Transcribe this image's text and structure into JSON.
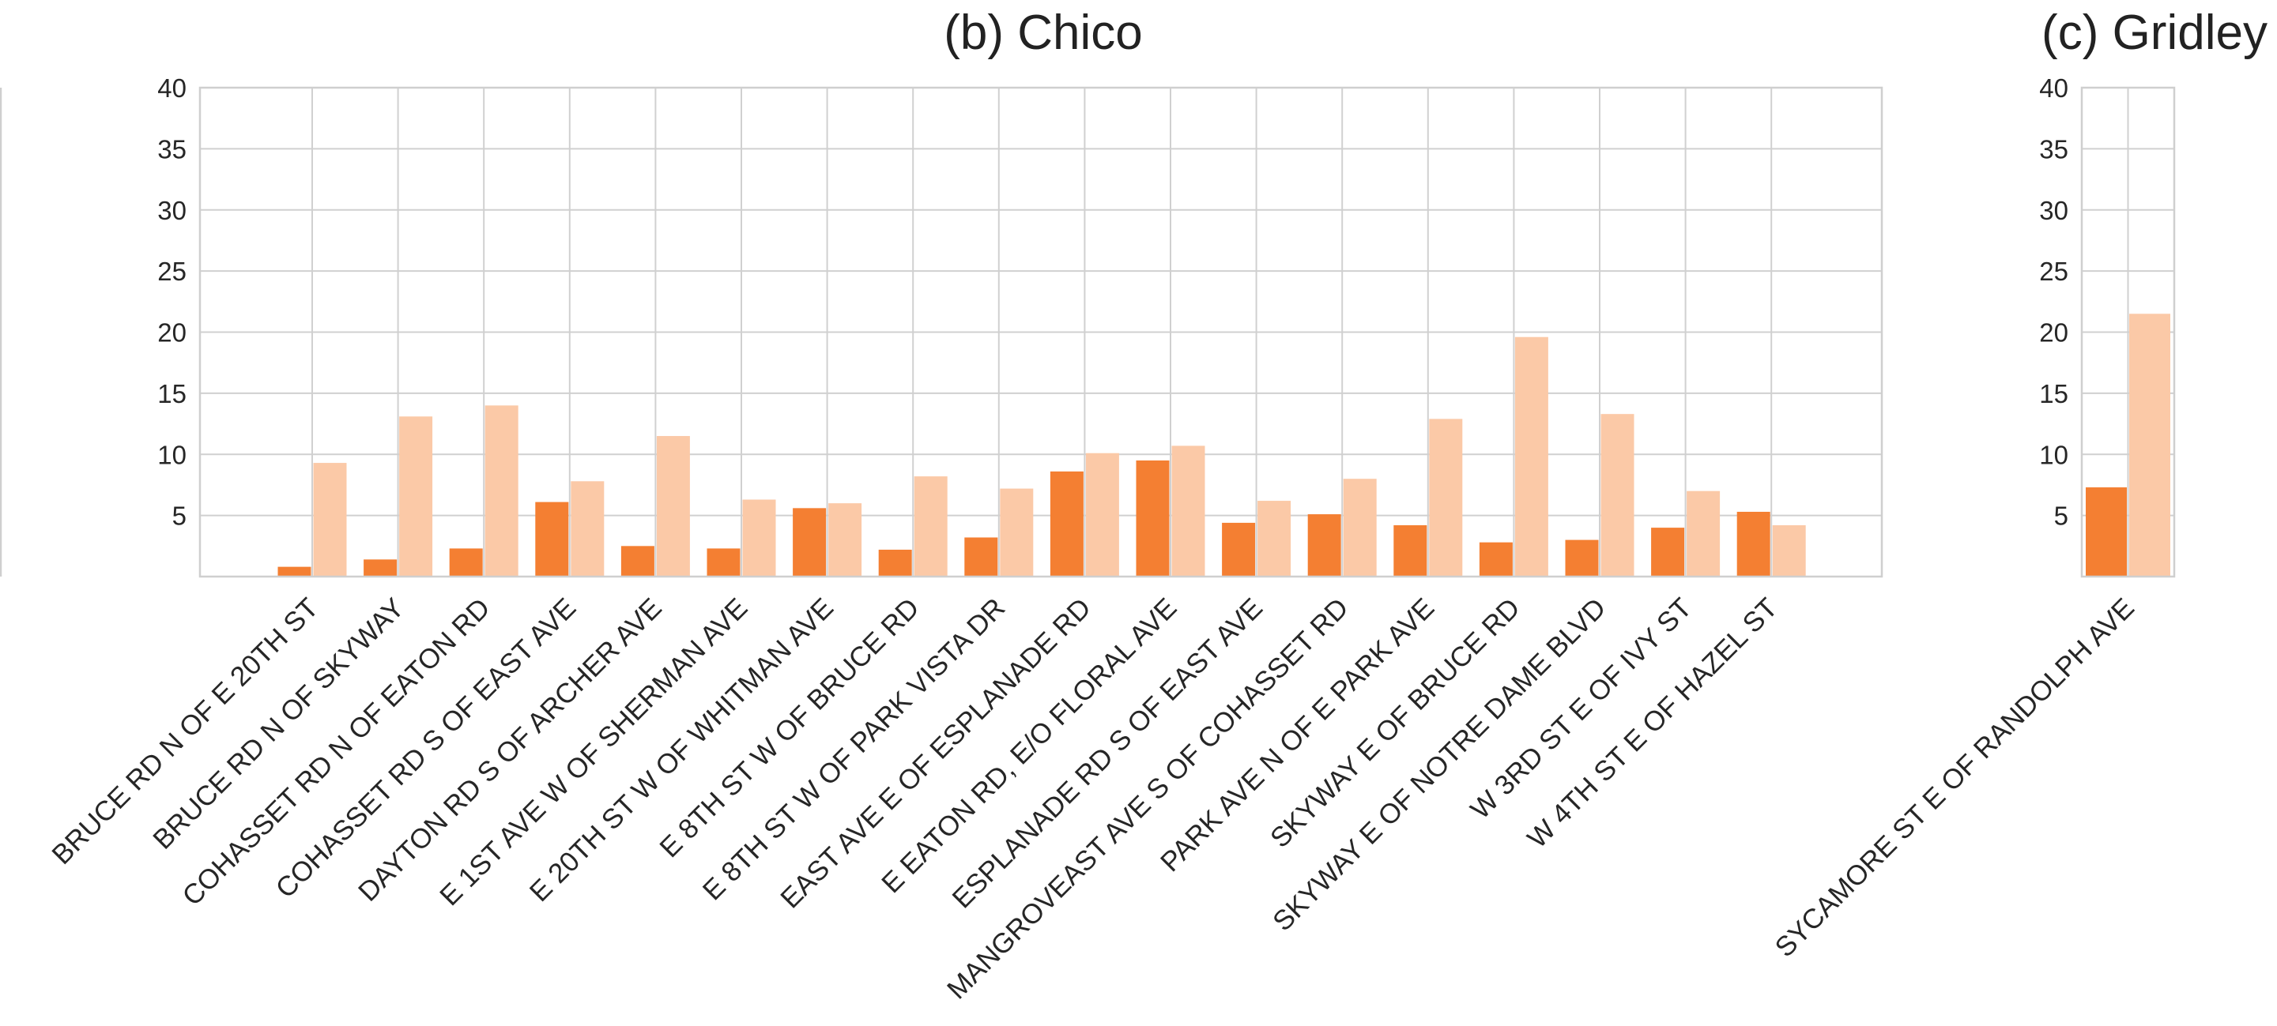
{
  "colors": {
    "series_dark": "#F47F32",
    "series_light": "#FBC9A7"
  },
  "chart_data": [
    {
      "type": "bar",
      "title": "(b) Chico",
      "ylim": [
        0,
        40
      ],
      "yticks": [
        "5",
        "10",
        "15",
        "20",
        "25",
        "30",
        "35",
        "40"
      ],
      "grid": true,
      "categories": [
        "BRUCE RD N OF E 20TH ST",
        "BRUCE RD N OF SKYWAY",
        "COHASSET RD N OF EATON RD",
        "COHASSET RD S OF EAST AVE",
        "DAYTON RD S OF ARCHER AVE",
        "E 1ST AVE W OF SHERMAN AVE",
        "E 20TH ST W OF WHITMAN AVE",
        "E 8TH ST W OF BRUCE RD",
        "E 8TH ST W OF PARK VISTA DR",
        "EAST AVE E OF ESPLANADE RD",
        "E EATON RD, E/O FLORAL AVE",
        "ESPLANADE RD S OF EAST AVE",
        "MANGROVEAST AVE S OF COHASSET RD",
        "PARK AVE N OF E PARK AVE",
        "SKYWAY E OF BRUCE RD",
        "SKYWAY E OF NOTRE DAME BLVD",
        "W 3RD ST E OF IVY ST",
        "W 4TH ST E OF HAZEL ST"
      ],
      "series": [
        {
          "color": "#F47F32",
          "values": [
            0.8,
            1.4,
            2.3,
            6.1,
            2.5,
            2.3,
            5.6,
            2.2,
            3.2,
            8.6,
            9.5,
            4.4,
            5.1,
            4.2,
            2.8,
            3.0,
            4.0,
            5.3
          ]
        },
        {
          "color": "#FBC9A7",
          "values": [
            9.3,
            13.1,
            14.0,
            7.8,
            11.5,
            6.3,
            6.0,
            8.2,
            7.2,
            10.1,
            10.7,
            6.2,
            8.0,
            12.9,
            19.6,
            13.3,
            7.0,
            4.2
          ]
        }
      ]
    },
    {
      "type": "bar",
      "title": "(c) Gridley",
      "ylim": [
        0,
        40
      ],
      "yticks": [
        "5",
        "10",
        "15",
        "20",
        "25",
        "30",
        "35",
        "40"
      ],
      "grid": true,
      "categories": [
        "SYCAMORE ST E OF RANDOLPH AVE"
      ],
      "series": [
        {
          "color": "#F47F32",
          "values": [
            7.3
          ]
        },
        {
          "color": "#FBC9A7",
          "values": [
            21.5
          ]
        }
      ]
    }
  ]
}
